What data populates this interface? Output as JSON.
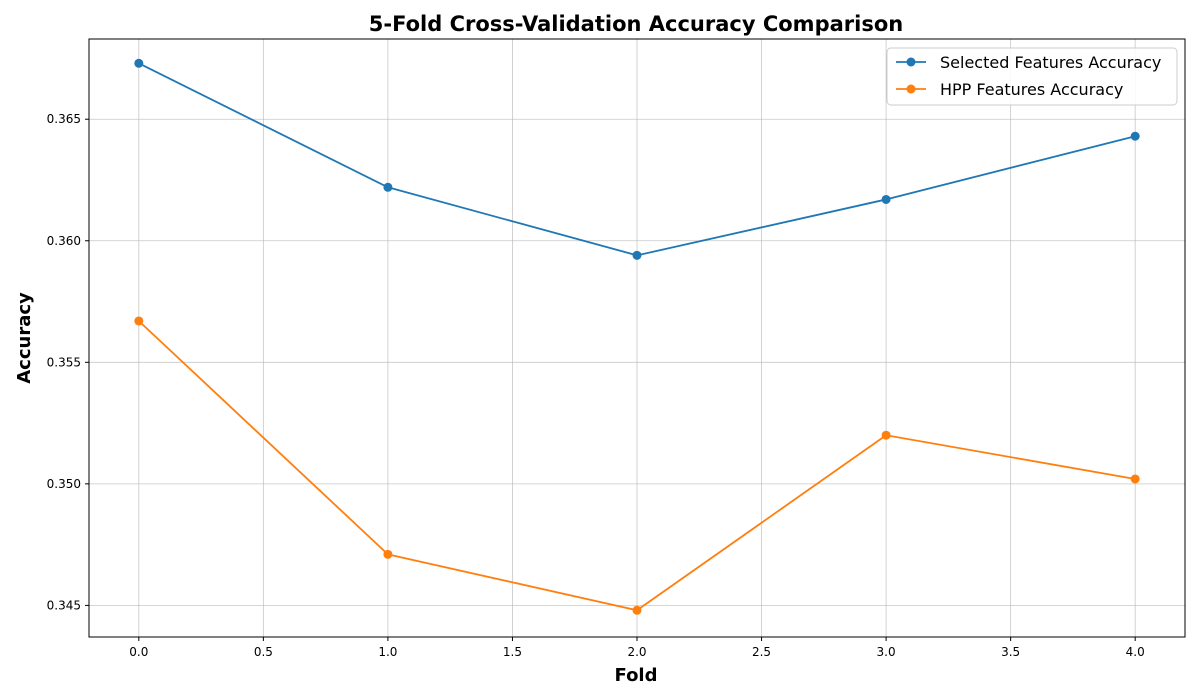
{
  "chart_data": {
    "type": "line",
    "title": "5-Fold Cross-Validation Accuracy Comparison",
    "xlabel": "Fold",
    "ylabel": "Accuracy",
    "xlim": [
      -0.2,
      4.2
    ],
    "ylim": [
      0.3437,
      0.3683
    ],
    "xticks": [
      0.0,
      0.5,
      1.0,
      1.5,
      2.0,
      2.5,
      3.0,
      3.5,
      4.0
    ],
    "xtick_labels": [
      "0.0",
      "0.5",
      "1.0",
      "1.5",
      "2.0",
      "2.5",
      "3.0",
      "3.5",
      "4.0"
    ],
    "yticks": [
      0.345,
      0.35,
      0.355,
      0.36,
      0.365
    ],
    "ytick_labels": [
      "0.345",
      "0.350",
      "0.355",
      "0.360",
      "0.365"
    ],
    "grid": true,
    "legend_position": "top-right",
    "x": [
      0,
      1,
      2,
      3,
      4
    ],
    "series": [
      {
        "name": "Selected Features Accuracy",
        "color": "#1f77b4",
        "values": [
          0.3673,
          0.3622,
          0.3594,
          0.3617,
          0.3643
        ]
      },
      {
        "name": "HPP Features Accuracy",
        "color": "#ff7f0e",
        "values": [
          0.3567,
          0.3471,
          0.3448,
          0.352,
          0.3502
        ]
      }
    ]
  }
}
